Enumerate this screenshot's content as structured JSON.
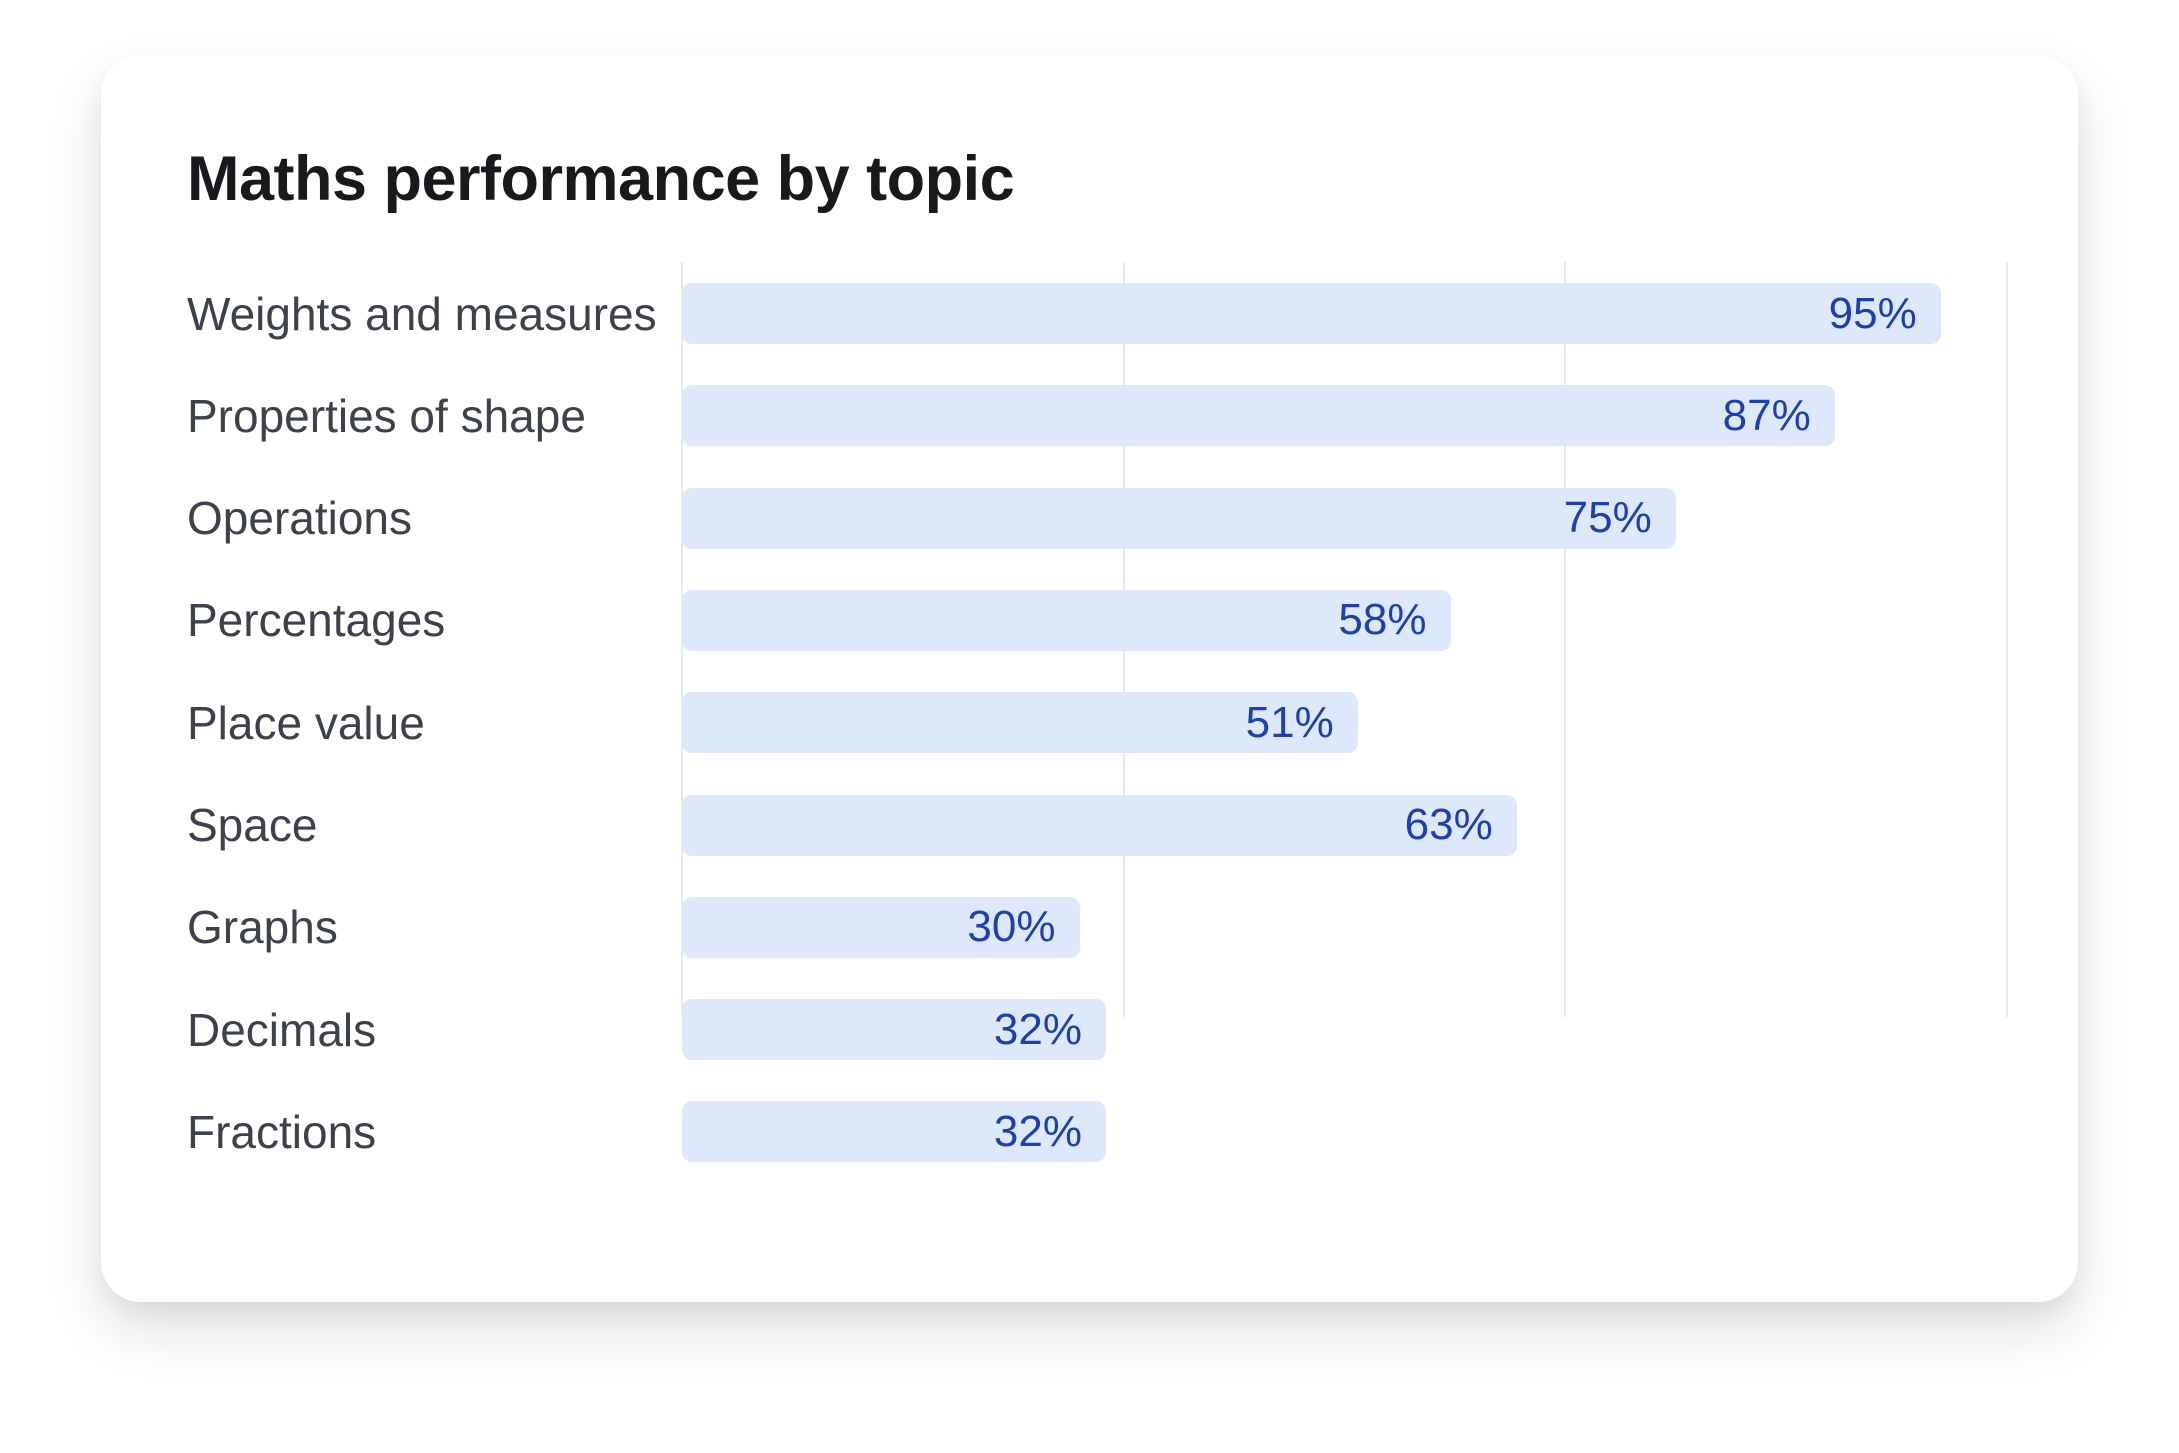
{
  "card": {
    "title": "Maths performance by topic"
  },
  "chart_data": {
    "type": "bar",
    "orientation": "horizontal",
    "title": "Maths performance by topic",
    "categories": [
      "Weights and measures",
      "Properties of shape",
      "Operations",
      "Percentages",
      "Place value",
      "Space",
      "Graphs",
      "Decimals",
      "Fractions"
    ],
    "values": [
      95,
      87,
      75,
      58,
      51,
      63,
      30,
      32,
      32
    ],
    "value_labels": [
      "95%",
      "87%",
      "75%",
      "58%",
      "51%",
      "63%",
      "30%",
      "32%",
      "32%"
    ],
    "value_suffix": "%",
    "xlabel": "",
    "ylabel": "",
    "xlim": [
      0,
      100
    ],
    "gridline_positions": [
      0,
      33.333,
      66.667,
      100
    ],
    "grid": true,
    "legend": false,
    "colors": {
      "bar_fill": "#dde9fb",
      "value_text": "#1e40af",
      "title_text": "#17191d",
      "category_text": "#3d424a",
      "gridline": "#e8e9eb",
      "card_background": "#ffffff"
    }
  }
}
